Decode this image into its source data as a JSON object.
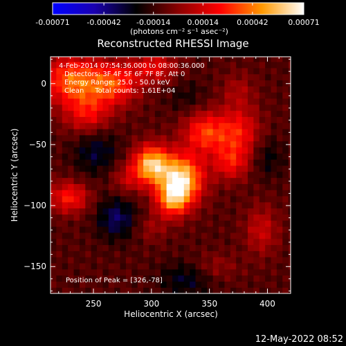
{
  "colorbar": {
    "ticks": [
      "-0.00071",
      "-0.00042",
      "-0.00014",
      "0.00014",
      "0.00042",
      "0.00071"
    ],
    "unit_label": "(photons cm⁻² s⁻¹ asec⁻²)",
    "stops": [
      "#0000ff",
      "#1a00b0",
      "#000000",
      "#8a0000",
      "#ff0000",
      "#ff9900",
      "#ffffff"
    ]
  },
  "chart_data": {
    "type": "heatmap",
    "title": "Reconstructed RHESSI Image",
    "xlabel": "Heliocentric X (arcsec)",
    "ylabel": "Heliocentric Y (arcsec)",
    "xlim": [
      213,
      420
    ],
    "ylim": [
      -172,
      22
    ],
    "xticks": [
      "250",
      "300",
      "350",
      "400"
    ],
    "yticks": [
      "0",
      "-50",
      "-100",
      "-150"
    ],
    "zlim": [
      -0.00071,
      0.00071
    ],
    "blobs": [
      {
        "x": 300,
        "y": -66,
        "sx": 11,
        "sy": 11,
        "amp": 0.00066
      },
      {
        "x": 326,
        "y": -78,
        "sx": 13,
        "sy": 14,
        "amp": 0.00071
      },
      {
        "x": 318,
        "y": -95,
        "sx": 10,
        "sy": 10,
        "amp": 0.00045
      },
      {
        "x": 346,
        "y": -40,
        "sx": 13,
        "sy": 12,
        "amp": 0.0004
      },
      {
        "x": 375,
        "y": -40,
        "sx": 13,
        "sy": 15,
        "amp": 0.00034
      },
      {
        "x": 368,
        "y": -65,
        "sx": 11,
        "sy": 10,
        "amp": 0.00028
      },
      {
        "x": 232,
        "y": 3,
        "sx": 18,
        "sy": 14,
        "amp": 0.00048
      },
      {
        "x": 268,
        "y": 0,
        "sx": 15,
        "sy": 12,
        "amp": 0.0004
      },
      {
        "x": 245,
        "y": -25,
        "sx": 14,
        "sy": 12,
        "amp": 0.0003
      },
      {
        "x": 303,
        "y": 14,
        "sx": 14,
        "sy": 9,
        "amp": 0.00028
      },
      {
        "x": 229,
        "y": -93,
        "sx": 12,
        "sy": 9,
        "amp": 0.00036
      },
      {
        "x": 279,
        "y": -78,
        "sx": 10,
        "sy": 9,
        "amp": 0.00018
      },
      {
        "x": 395,
        "y": -120,
        "sx": 10,
        "sy": 14,
        "amp": 0.00022
      },
      {
        "x": 355,
        "y": -150,
        "sx": 14,
        "sy": 8,
        "amp": 0.00012
      },
      {
        "x": 300,
        "y": -118,
        "sx": 10,
        "sy": 8,
        "amp": 0.00012
      },
      {
        "x": 375,
        "y": -5,
        "sx": 10,
        "sy": 10,
        "amp": 0.00014
      },
      {
        "x": 270,
        "y": -110,
        "sx": 12,
        "sy": 12,
        "amp": -0.00026
      },
      {
        "x": 252,
        "y": -55,
        "sx": 14,
        "sy": 14,
        "amp": -0.0002
      },
      {
        "x": 330,
        "y": -160,
        "sx": 16,
        "sy": 10,
        "amp": -0.00018
      },
      {
        "x": 400,
        "y": -60,
        "sx": 10,
        "sy": 12,
        "amp": -0.00014
      },
      {
        "x": 330,
        "y": -10,
        "sx": 12,
        "sy": 10,
        "amp": -0.0001
      }
    ],
    "base_level": -0.0001,
    "annotations": [
      "4-Feb-2014 07:54:36.000 to 08:00:36.000",
      "Detectors: 3F 4F 5F 6F 7F 8F, Att 0",
      "Energy Range: 25.0 - 50.0 keV",
      "Clean     Total counts: 1.61E+04"
    ],
    "peak_label": "Position of Peak = [326,-78]"
  },
  "footer": {
    "date": "12-May-2022 08:52"
  }
}
